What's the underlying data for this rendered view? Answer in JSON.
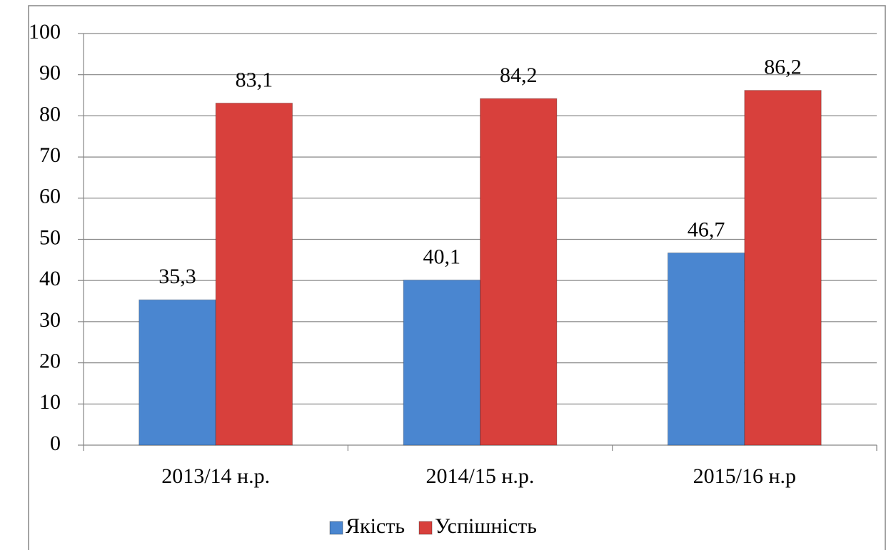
{
  "chart_data": {
    "type": "bar",
    "categories": [
      "2013/14 н.р.",
      "2014/15 н.р.",
      "2015/16 н.р"
    ],
    "series": [
      {
        "name": "Якість",
        "color": "#4a86d0",
        "values": [
          35.3,
          40.1,
          46.7
        ],
        "value_labels": [
          "35,3",
          "40,1",
          "46,7"
        ]
      },
      {
        "name": "Успішність",
        "color": "#d8403c",
        "values": [
          83.1,
          84.2,
          86.2
        ],
        "value_labels": [
          "83,1",
          "84,2",
          "86,2"
        ]
      }
    ],
    "ylim": [
      0,
      100
    ],
    "yticks": [
      0,
      10,
      20,
      30,
      40,
      50,
      60,
      70,
      80,
      90,
      100
    ],
    "grid": true,
    "legend": "bottom"
  }
}
